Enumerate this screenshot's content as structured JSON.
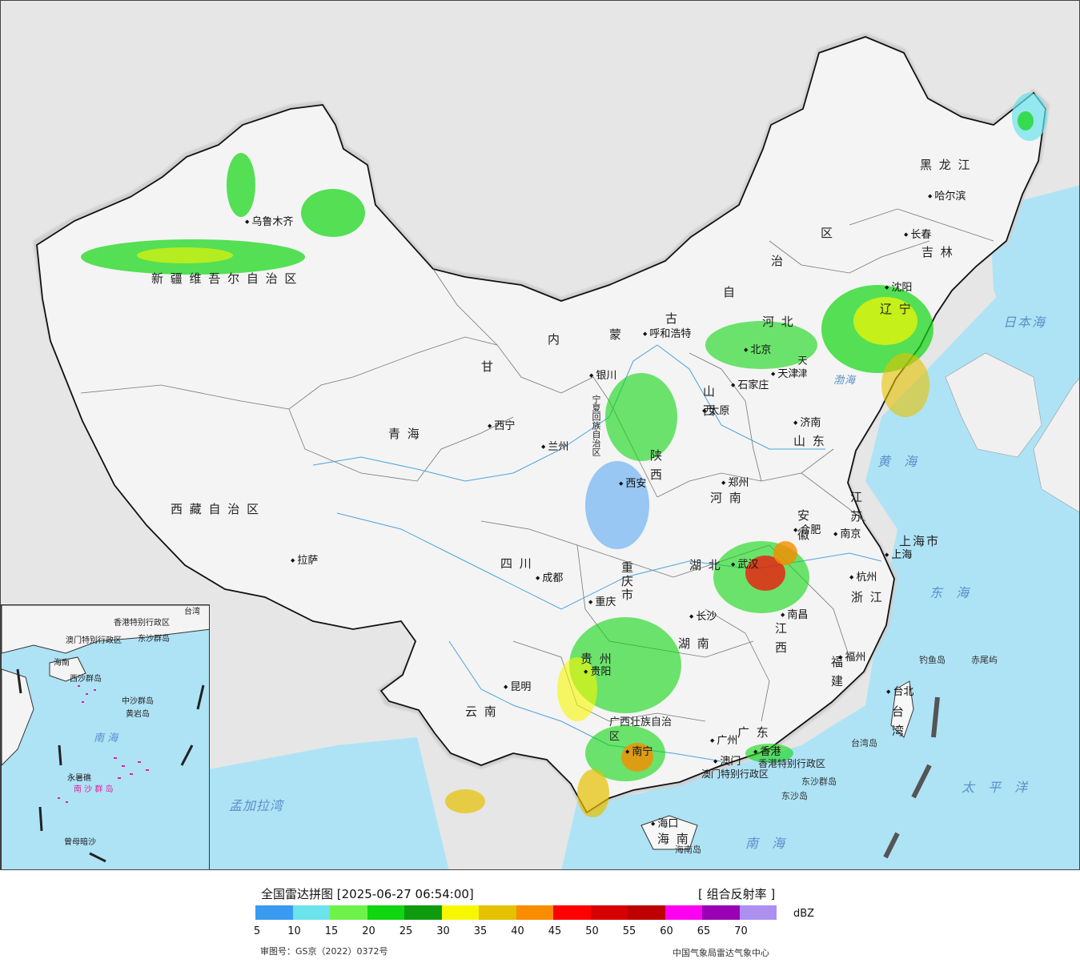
{
  "map": {
    "regions": [
      {
        "id": "xinjiang",
        "text": "新 疆 维 吾 尔 自 治 区"
      },
      {
        "id": "xizang",
        "text": "西 藏 自 治 区"
      },
      {
        "id": "qinghai",
        "text": "青    海"
      },
      {
        "id": "gansu",
        "text": "甘"
      },
      {
        "id": "neimenggu-1",
        "text": "内"
      },
      {
        "id": "neimenggu-2",
        "text": "蒙"
      },
      {
        "id": "neimenggu-3",
        "text": "古"
      },
      {
        "id": "neimenggu-4",
        "text": "自"
      },
      {
        "id": "neimenggu-5",
        "text": "治"
      },
      {
        "id": "neimenggu-6",
        "text": "区"
      },
      {
        "id": "heilongjiang",
        "text": "黑 龙 江"
      },
      {
        "id": "jilin",
        "text": "吉 林"
      },
      {
        "id": "liaoning",
        "text": "辽 宁"
      },
      {
        "id": "hebei",
        "text": "河    北"
      },
      {
        "id": "shanxi",
        "text": "山 西"
      },
      {
        "id": "shaanxi",
        "text": "陕 西"
      },
      {
        "id": "ningxia",
        "text": "宁夏回族自治区"
      },
      {
        "id": "sichuan",
        "text": "四    川"
      },
      {
        "id": "chongqing",
        "text": "重庆市"
      },
      {
        "id": "henan",
        "text": "河 南"
      },
      {
        "id": "shandong",
        "text": "山 东"
      },
      {
        "id": "jiangsu",
        "text": "江 苏"
      },
      {
        "id": "anhui",
        "text": "安 徽"
      },
      {
        "id": "hubei",
        "text": "湖 北"
      },
      {
        "id": "hunan",
        "text": "湖 南"
      },
      {
        "id": "jiangxi",
        "text": "江 西"
      },
      {
        "id": "zhejiang",
        "text": "浙 江"
      },
      {
        "id": "fujian",
        "text": "福 建"
      },
      {
        "id": "guizhou",
        "text": "贵 州"
      },
      {
        "id": "yunnan",
        "text": "云 南"
      },
      {
        "id": "guangxi",
        "text": "广西壮族自治区"
      },
      {
        "id": "guangdong",
        "text": "广 东"
      },
      {
        "id": "hainan",
        "text": "海 南"
      },
      {
        "id": "shanghai",
        "text": "上海市"
      },
      {
        "id": "tianjin",
        "text": "天 津"
      },
      {
        "id": "taiwan",
        "text": "台 湾"
      },
      {
        "id": "hongkong",
        "text": "香港特别行政区"
      },
      {
        "id": "macau",
        "text": "澳门特别行政区"
      }
    ],
    "cities": [
      {
        "id": "urumqi",
        "text": "乌鲁木齐"
      },
      {
        "id": "lhasa",
        "text": "拉萨"
      },
      {
        "id": "xining",
        "text": "西宁"
      },
      {
        "id": "lanzhou",
        "text": "兰州"
      },
      {
        "id": "yinchuan",
        "text": "银川"
      },
      {
        "id": "hohhot",
        "text": "呼和浩特"
      },
      {
        "id": "beijing",
        "text": "北京"
      },
      {
        "id": "tianjin-city",
        "text": "天津"
      },
      {
        "id": "shijiazhuang",
        "text": "石家庄"
      },
      {
        "id": "taiyuan",
        "text": "太原"
      },
      {
        "id": "jinan",
        "text": "济南"
      },
      {
        "id": "zhengzhou",
        "text": "郑州"
      },
      {
        "id": "xian",
        "text": "西安"
      },
      {
        "id": "chengdu",
        "text": "成都"
      },
      {
        "id": "chongqing-city",
        "text": "重庆"
      },
      {
        "id": "guiyang",
        "text": "贵阳"
      },
      {
        "id": "kunming",
        "text": "昆明"
      },
      {
        "id": "nanning",
        "text": "南宁"
      },
      {
        "id": "guangzhou",
        "text": "广州"
      },
      {
        "id": "macau-city",
        "text": "澳门"
      },
      {
        "id": "hongkong-city",
        "text": "香港"
      },
      {
        "id": "haikou",
        "text": "海口"
      },
      {
        "id": "changsha",
        "text": "长沙"
      },
      {
        "id": "wuhan",
        "text": "武汉"
      },
      {
        "id": "nanchang",
        "text": "南昌"
      },
      {
        "id": "fuzhou",
        "text": "福州"
      },
      {
        "id": "hangzhou",
        "text": "杭州"
      },
      {
        "id": "hefei",
        "text": "合肥"
      },
      {
        "id": "nanjing",
        "text": "南京"
      },
      {
        "id": "shanghai-city",
        "text": "上海"
      },
      {
        "id": "taibei",
        "text": "台北"
      },
      {
        "id": "shenyang",
        "text": "沈阳"
      },
      {
        "id": "changchun",
        "text": "长春"
      },
      {
        "id": "harbin",
        "text": "哈尔滨"
      }
    ],
    "seas": [
      {
        "id": "sea-japan",
        "text": "日本海"
      },
      {
        "id": "sea-yellow",
        "text": "黄 海"
      },
      {
        "id": "sea-east",
        "text": "东 海"
      },
      {
        "id": "sea-south",
        "text": "南 海"
      },
      {
        "id": "sea-pacific",
        "text": "太 平 洋"
      },
      {
        "id": "sea-bengal",
        "text": "孟加拉湾"
      },
      {
        "id": "sea-bohai",
        "text": "渤海"
      }
    ],
    "islands": [
      {
        "id": "diaoyu",
        "text": "钓鱼岛"
      },
      {
        "id": "chiwei",
        "text": "赤尾屿"
      },
      {
        "id": "dongsha-1",
        "text": "东沙群岛"
      },
      {
        "id": "dongsha-2",
        "text": "东沙岛"
      },
      {
        "id": "hainan-island",
        "text": "海南岛"
      },
      {
        "id": "taiwan-island",
        "text": "台湾岛"
      }
    ],
    "inset": {
      "labels": [
        {
          "id": "inset-hk",
          "text": "香港特别行政区"
        },
        {
          "id": "inset-macau",
          "text": "澳门特别行政区"
        },
        {
          "id": "inset-dongsha",
          "text": "东沙群岛"
        },
        {
          "id": "inset-hainan",
          "text": "海南"
        },
        {
          "id": "inset-xisha",
          "text": "西沙群岛"
        },
        {
          "id": "inset-zhongsha",
          "text": "中沙群岛"
        },
        {
          "id": "inset-huangyan",
          "text": "黄岩岛"
        },
        {
          "id": "inset-south-sea",
          "text": "南 海"
        },
        {
          "id": "inset-nansha",
          "text": "南 沙 群 岛"
        },
        {
          "id": "inset-yongshu",
          "text": "永暑礁"
        },
        {
          "id": "inset-zengmu",
          "text": "曾母暗沙"
        },
        {
          "id": "inset-taiwan",
          "text": "台湾"
        }
      ]
    }
  },
  "legend": {
    "title": "全国雷达拼图 [2025-06-27 06:54:00]",
    "product": "[ 组合反射率 ]",
    "unit": "dBZ",
    "colors": [
      "#3a9af0",
      "#6be3ec",
      "#6ef24a",
      "#0fd60f",
      "#0e9c0e",
      "#f7f700",
      "#e5c100",
      "#f98c00",
      "#ff0000",
      "#d60000",
      "#be0000",
      "#ff00f0",
      "#9a00b4",
      "#ac90f0"
    ],
    "ticks": [
      "5",
      "10",
      "15",
      "20",
      "25",
      "30",
      "35",
      "40",
      "45",
      "50",
      "55",
      "60",
      "65",
      "70"
    ],
    "approval": "审图号：GS京（2022）0372号",
    "credit": "中国气象局雷达气象中心"
  }
}
